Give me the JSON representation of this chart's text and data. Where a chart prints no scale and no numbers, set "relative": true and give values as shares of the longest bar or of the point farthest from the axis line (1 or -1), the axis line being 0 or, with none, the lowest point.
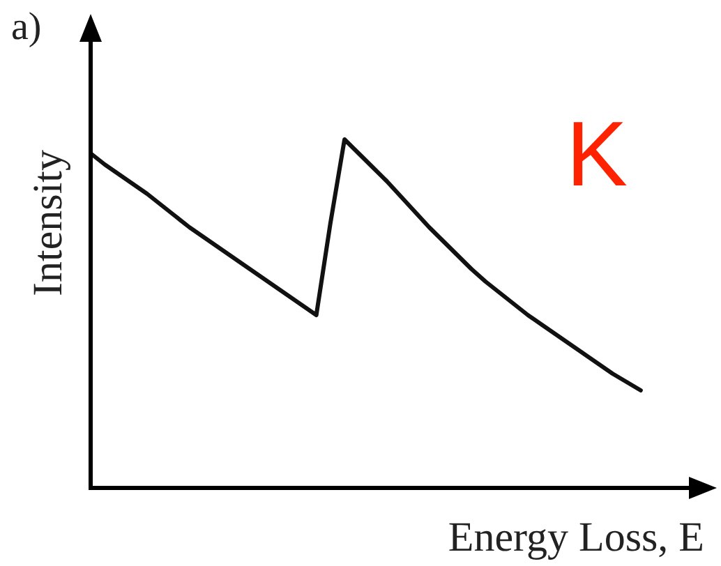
{
  "chart_data": {
    "type": "line",
    "relative": true,
    "xlabel": "Energy Loss, E",
    "ylabel": "Intensity",
    "annotations": [
      "a)",
      "K"
    ],
    "grid": false,
    "legend": false,
    "marker": "none",
    "line_style": "solid",
    "categories": [
      null,
      null,
      null,
      null,
      null,
      null,
      null,
      null,
      null,
      null,
      null,
      null,
      null,
      null,
      null,
      null,
      null,
      null,
      null,
      null,
      null,
      null,
      null,
      null,
      null,
      null,
      null,
      null,
      null,
      null,
      null,
      null,
      null,
      null,
      null,
      null,
      null,
      null,
      null,
      null,
      null,
      null,
      null,
      null,
      null
    ],
    "series": [
      {
        "color": "#111111",
        "values": [
          0.96,
          0.928,
          0.9,
          0.872,
          0.844,
          0.812,
          0.78,
          0.748,
          0.72,
          0.692,
          0.664,
          0.636,
          0.608,
          0.58,
          0.552,
          0.524,
          0.496,
          0.76,
          1.0,
          0.96,
          0.92,
          0.88,
          0.836,
          0.792,
          0.748,
          0.708,
          0.668,
          0.628,
          0.592,
          0.56,
          0.528,
          0.496,
          0.468,
          0.44,
          0.412,
          0.384,
          0.356,
          0.328,
          0.304,
          0.28,
          null,
          null,
          null,
          null,
          null
        ]
      }
    ]
  }
}
